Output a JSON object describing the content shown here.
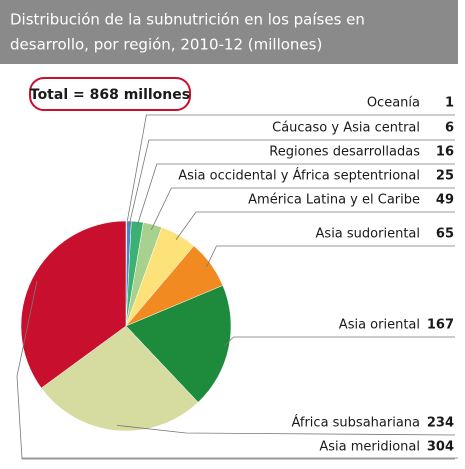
{
  "chart_data": {
    "type": "pie",
    "title": [
      "Distribución de la subnutrición en los países en",
      "desarrollo, por región, 2010-12 (millones)"
    ],
    "annotation": "Total = 868 millones",
    "categories": [
      "Oceanía",
      "Cáucaso y Asia central",
      "Regiones desarrolladas",
      "Asia occidental y África septentrional",
      "América Latina y el Caribe",
      "Asia sudoriental",
      "Asia oriental",
      "África subsahariana",
      "Asia meridional"
    ],
    "values": [
      1,
      6,
      16,
      25,
      49,
      65,
      167,
      234,
      304
    ],
    "colors": [
      "#9a9a9a",
      "#4f86c6",
      "#3bb273",
      "#a9d18e",
      "#fde27a",
      "#f28a22",
      "#1e8a3c",
      "#d6dca0",
      "#c8102e"
    ]
  }
}
